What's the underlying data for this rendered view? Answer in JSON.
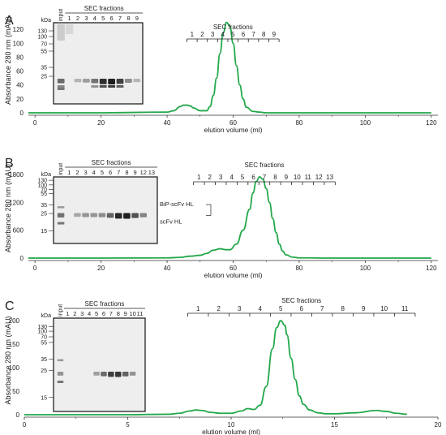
{
  "chart_data": [
    {
      "type": "line",
      "panel_label": "A",
      "xlabel": "elution volume (ml)",
      "ylabel": "Absorbance 280 nm (mAU)",
      "xlim": [
        -2,
        122
      ],
      "ylim": [
        -5,
        140
      ],
      "xticks": [
        0,
        20,
        40,
        60,
        80,
        100,
        120
      ],
      "yticks": [
        0,
        20,
        40,
        60,
        80,
        100,
        120
      ],
      "color": "#22a84a",
      "x": [
        0,
        20,
        40,
        42,
        44,
        45,
        46,
        47,
        48,
        50,
        52,
        53,
        54,
        55,
        56,
        57,
        58,
        59,
        60,
        61,
        62,
        63,
        64,
        66,
        68,
        70,
        80,
        100,
        120
      ],
      "y": [
        0,
        0,
        1,
        3,
        9,
        11,
        11,
        10,
        7,
        3,
        3,
        9,
        25,
        50,
        85,
        115,
        130,
        125,
        100,
        68,
        40,
        20,
        8,
        2,
        1,
        0,
        0,
        0,
        0
      ],
      "fractions": {
        "title": "SEC fractions",
        "labels": [
          "1",
          "2",
          "3",
          "4",
          "5",
          "6",
          "7",
          "8",
          "9"
        ],
        "edges": [
          46,
          49.1,
          52.2,
          55.3,
          58.4,
          61.5,
          64.6,
          67.7,
          70.8,
          73.9
        ]
      },
      "gel": {
        "unit": "kDa",
        "markers": [
          "130",
          "100",
          "70",
          "55",
          "35",
          "25"
        ],
        "lane_header": "SEC fractions",
        "lanes": [
          "input",
          "1",
          "2",
          "3",
          "4",
          "5",
          "6",
          "7",
          "8",
          "9"
        ],
        "annotations": []
      }
    },
    {
      "type": "line",
      "panel_label": "B",
      "xlabel": "elution volume (ml)",
      "ylabel": "Absorbance 280 nm (mAU)",
      "xlim": [
        -2,
        122
      ],
      "ylim": [
        -100,
        2000
      ],
      "xticks": [
        0,
        20,
        40,
        60,
        80,
        100,
        120
      ],
      "yticks": [
        0,
        600,
        1200,
        1800
      ],
      "color": "#22a84a",
      "x": [
        0,
        20,
        40,
        44,
        47,
        50,
        52,
        54,
        56,
        58,
        59,
        61,
        63,
        65,
        66,
        67,
        68,
        69,
        70,
        71,
        72,
        73,
        74,
        75,
        76,
        78,
        80,
        90,
        100,
        120
      ],
      "y": [
        0,
        0,
        5,
        15,
        40,
        60,
        100,
        170,
        200,
        180,
        180,
        300,
        600,
        1050,
        1400,
        1650,
        1750,
        1700,
        1500,
        1200,
        850,
        550,
        300,
        150,
        70,
        20,
        5,
        0,
        0,
        0
      ],
      "fractions": {
        "title": "SEC fractions",
        "labels": [
          "1",
          "2",
          "3",
          "4",
          "5",
          "6",
          "7",
          "8",
          "9",
          "10",
          "11",
          "12",
          "13"
        ],
        "edges": [
          48,
          51.3,
          54.6,
          57.9,
          61.2,
          64.5,
          67.8,
          71.1,
          74.4,
          77.7,
          81,
          84.3,
          87.6,
          90.9
        ]
      },
      "gel": {
        "unit": "kDa",
        "markers": [
          "130",
          "100",
          "70",
          "55",
          "35",
          "25",
          "15"
        ],
        "lane_header": "SEC fractions",
        "lanes": [
          "input",
          "1",
          "2",
          "3",
          "4",
          "5",
          "6",
          "7",
          "8",
          "9",
          "12",
          "13"
        ],
        "annotations": [
          "BiP-scFv HL",
          "scFv HL"
        ]
      }
    },
    {
      "type": "line",
      "panel_label": "C",
      "xlabel": "elution volume (ml)",
      "ylabel": "Absorbance 280 nm (mAU)",
      "xlim": [
        0,
        20
      ],
      "ylim": [
        -5,
        215
      ],
      "xticks": [
        0,
        5,
        10,
        15,
        20
      ],
      "yticks": [
        0,
        50,
        100,
        150,
        200
      ],
      "color": "#22a84a",
      "x": [
        0,
        5,
        7,
        7.5,
        8,
        8.3,
        8.6,
        9,
        9.5,
        10,
        10.5,
        10.8,
        11.1,
        11.4,
        11.7,
        12,
        12.2,
        12.4,
        12.6,
        12.7,
        12.9,
        13.1,
        13.3,
        13.5,
        13.8,
        14.2,
        14.6,
        15,
        16,
        17,
        17.5,
        18,
        18.5
      ],
      "y": [
        0,
        0,
        1,
        3,
        8,
        10,
        9,
        5,
        3,
        3,
        8,
        13,
        11,
        20,
        60,
        140,
        185,
        200,
        190,
        170,
        120,
        75,
        40,
        22,
        10,
        4,
        2,
        2,
        4,
        9,
        7,
        3,
        1
      ],
      "fractions": {
        "title": "SEC fractions",
        "labels": [
          "1",
          "2",
          "3",
          "4",
          "5",
          "6",
          "7",
          "8",
          "9",
          "10",
          "11"
        ],
        "edges": [
          7.9,
          8.9,
          9.9,
          10.9,
          11.9,
          12.9,
          13.9,
          14.9,
          15.9,
          16.9,
          17.9,
          18.9
        ]
      },
      "gel": {
        "unit": "kDa",
        "markers": [
          "130",
          "100",
          "70",
          "55",
          "35",
          "25",
          "15"
        ],
        "lane_header": "SEC fractions",
        "lanes": [
          "input",
          "1",
          "2",
          "3",
          "4",
          "5",
          "6",
          "7",
          "8",
          "9",
          "10",
          "11"
        ],
        "annotations": []
      }
    }
  ]
}
